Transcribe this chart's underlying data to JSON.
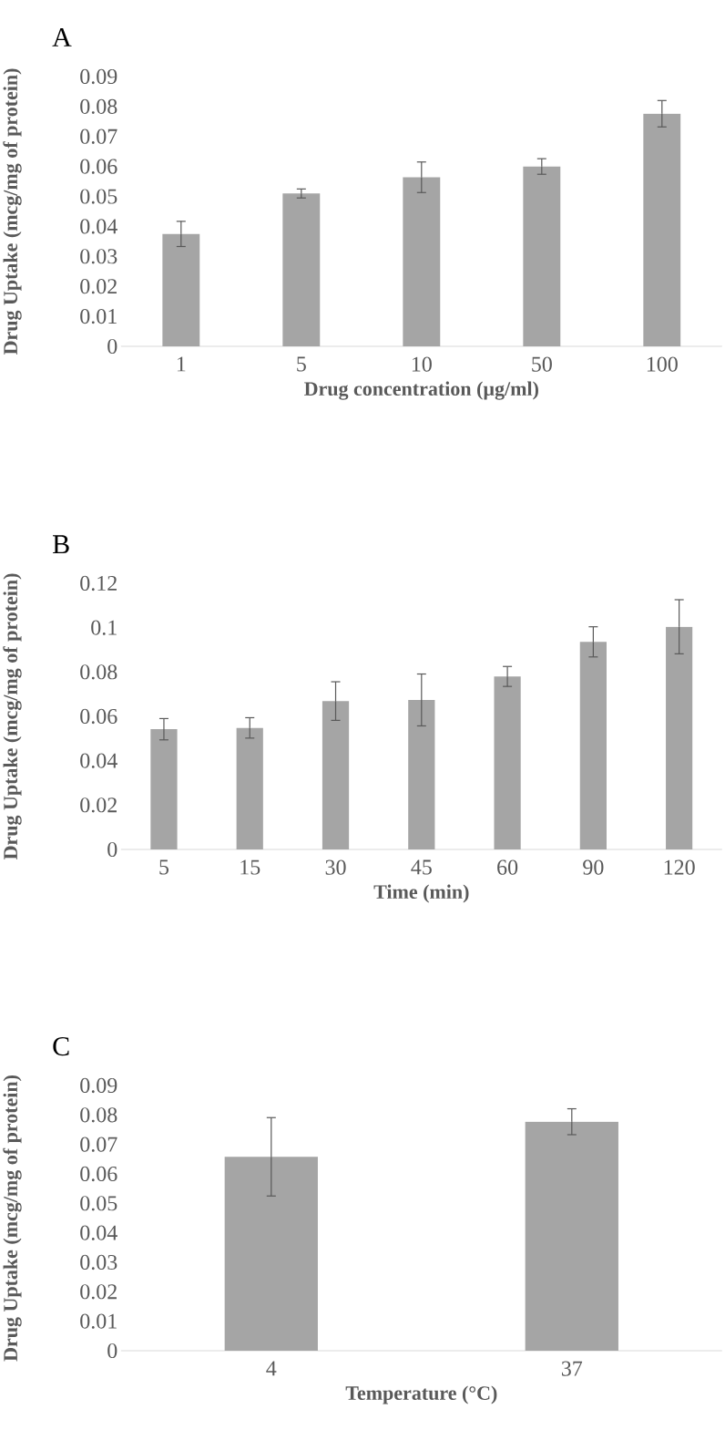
{
  "chart_data": [
    {
      "type": "bar",
      "title": "A",
      "xlabel": "Drug concentration (µg/ml)",
      "ylabel": "Drug Uptake (mcg/mg of protein)",
      "categories": [
        "1",
        "5",
        "10",
        "50",
        "100"
      ],
      "values": [
        0.0375,
        0.051,
        0.0564,
        0.06,
        0.0776
      ],
      "errors": [
        0.0042,
        0.0015,
        0.0051,
        0.0026,
        0.0044
      ],
      "color": "#a5a5a5",
      "ylim": [
        0,
        0.09
      ],
      "yticks": [
        0,
        0.01,
        0.02,
        0.03,
        0.04,
        0.05,
        0.06,
        0.07,
        0.08,
        0.09
      ]
    },
    {
      "type": "bar",
      "title": "B",
      "xlabel": "Time (min)",
      "ylabel": "Drug Uptake (mcg/mg of protein)",
      "categories": [
        "5",
        "15",
        "30",
        "45",
        "60",
        "90",
        "120"
      ],
      "values": [
        0.0542,
        0.0548,
        0.0669,
        0.0674,
        0.078,
        0.0936,
        0.1004
      ],
      "errors": [
        0.0048,
        0.0046,
        0.0087,
        0.0117,
        0.0045,
        0.0068,
        0.0122
      ],
      "color": "#a5a5a5",
      "ylim": [
        0,
        0.12
      ],
      "yticks": [
        0,
        0.02,
        0.04,
        0.06,
        0.08,
        0.1,
        0.12
      ]
    },
    {
      "type": "bar",
      "title": "C",
      "xlabel": "Temperature (°C)",
      "ylabel": "Drug Uptake (mcg/mg of protein)",
      "categories": [
        "4",
        "37"
      ],
      "values": [
        0.0658,
        0.0777
      ],
      "errors": [
        0.0133,
        0.0044
      ],
      "color": "#a5a5a5",
      "ylim": [
        0,
        0.09
      ],
      "yticks": [
        0,
        0.01,
        0.02,
        0.03,
        0.04,
        0.05,
        0.06,
        0.07,
        0.08,
        0.09
      ]
    }
  ]
}
